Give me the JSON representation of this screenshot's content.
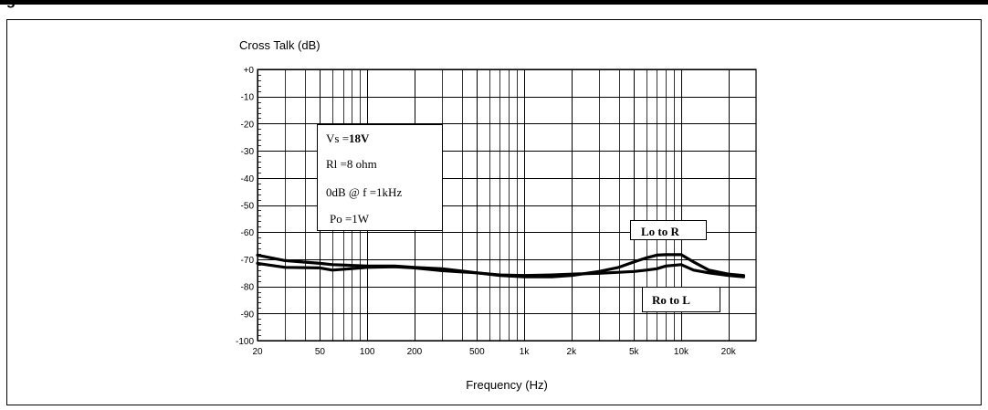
{
  "header_fragment": "ig",
  "chart_data": {
    "type": "line",
    "ylabel": "Cross Talk (dB)",
    "xlabel": "Frequency (Hz)",
    "x_scale": "log",
    "xlim": [
      20,
      30000
    ],
    "ylim": [
      -100,
      0
    ],
    "grid": true,
    "x_ticks": [
      {
        "value": 20,
        "label": "20"
      },
      {
        "value": 50,
        "label": "50"
      },
      {
        "value": 100,
        "label": "100"
      },
      {
        "value": 200,
        "label": "200"
      },
      {
        "value": 500,
        "label": "500"
      },
      {
        "value": 1000,
        "label": "1k"
      },
      {
        "value": 2000,
        "label": "2k"
      },
      {
        "value": 5000,
        "label": "5k"
      },
      {
        "value": 10000,
        "label": "10k"
      },
      {
        "value": 20000,
        "label": "20k"
      }
    ],
    "y_ticks": [
      {
        "value": 0,
        "label": "+0"
      },
      {
        "value": -10,
        "label": "-10"
      },
      {
        "value": -20,
        "label": "-20"
      },
      {
        "value": -30,
        "label": "-30"
      },
      {
        "value": -40,
        "label": "-40"
      },
      {
        "value": -50,
        "label": "-50"
      },
      {
        "value": -60,
        "label": "-60"
      },
      {
        "value": -70,
        "label": "-70"
      },
      {
        "value": -80,
        "label": "-80"
      },
      {
        "value": -90,
        "label": "-90"
      },
      {
        "value": -100,
        "label": "-100"
      }
    ],
    "conditions": [
      "Vs =",
      "18V",
      "Rl =8 ohm",
      "0dB @ f =1kHz",
      "Po =1W"
    ],
    "series": [
      {
        "name": "Lo to R",
        "color": "#000000",
        "x": [
          20,
          30,
          50,
          60,
          100,
          150,
          200,
          300,
          500,
          700,
          1000,
          1500,
          2000,
          3000,
          4000,
          5000,
          6000,
          7000,
          8000,
          10000,
          12000,
          15000,
          20000,
          25000
        ],
        "y": [
          -68.5,
          -70.5,
          -71.5,
          -72,
          -72.5,
          -72.5,
          -73,
          -73.5,
          -75,
          -76,
          -76.5,
          -76.5,
          -76,
          -74.5,
          -73,
          -71,
          -69.5,
          -68.5,
          -68.3,
          -68.3,
          -71,
          -74,
          -75.5,
          -76
        ]
      },
      {
        "name": "Ro to L",
        "color": "#000000",
        "x": [
          20,
          30,
          50,
          60,
          100,
          150,
          200,
          300,
          500,
          700,
          1000,
          1500,
          2000,
          3000,
          4000,
          5000,
          6000,
          7000,
          8000,
          10000,
          12000,
          15000,
          20000,
          25000
        ],
        "y": [
          -71.5,
          -73,
          -73.2,
          -74,
          -73,
          -72.8,
          -73.2,
          -74.2,
          -75,
          -75.8,
          -76,
          -75.8,
          -75.5,
          -75.2,
          -74.8,
          -74.5,
          -74,
          -73.5,
          -72.5,
          -72,
          -74,
          -75,
          -76,
          -76.5
        ]
      }
    ]
  }
}
